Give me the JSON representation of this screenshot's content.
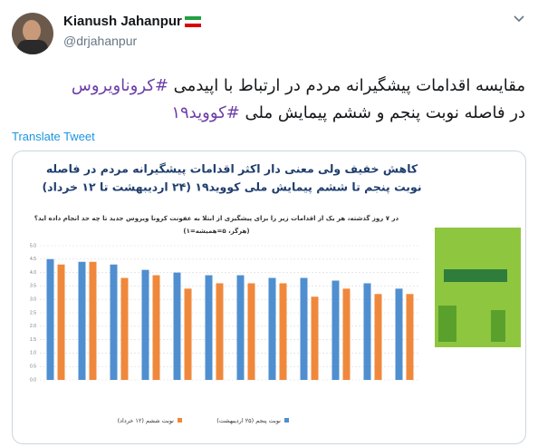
{
  "tweet": {
    "name": "Kianush Jahanpur",
    "handle": "@drjahanpur",
    "lines": [
      {
        "text": "مقایسه اقدامات پیشگیرانه مردم در ارتباط با اپیدمی",
        "hashtag": "#کروناویروس"
      },
      {
        "text": "در فاصله نوبت پنجم و ششم پیمایش ملی",
        "hashtag": "#کووید۱۹"
      }
    ],
    "translate": "Translate Tweet"
  },
  "chart_data": {
    "type": "bar",
    "title": [
      "کاهش خفیف ولی معنی دار اکثر اقدامات پیشگیرانه مردم در فاصله",
      "نوبت پنجم تا ششم پیمایش ملی کووید۱۹ (۲۴ اردیبهشت تا ۱۲ خرداد)"
    ],
    "subtitle": [
      "در ۷ روز گذشته، هر یک از اقدامات زیر را برای پیشگیری از ابتلا به عفونت کرونا ویروس جدید تا چه حد انجام داده اید؟",
      "(۱=هرگز، ۵=همیشه)"
    ],
    "categories": [
      null,
      null,
      null,
      null,
      null,
      null,
      null,
      null,
      null,
      null,
      null,
      null
    ],
    "series": [
      {
        "name": "نوبت پنجم (۲۵ اردیبهشت)",
        "color": "#4f8fd0",
        "values": [
          4.5,
          4.4,
          4.3,
          4.1,
          4.0,
          3.9,
          3.9,
          3.8,
          3.8,
          3.7,
          3.6,
          3.4
        ]
      },
      {
        "name": "نوبت ششم (۱۲ خرداد)",
        "color": "#f0883c",
        "values": [
          4.3,
          4.4,
          3.8,
          3.9,
          3.4,
          3.6,
          3.6,
          3.6,
          3.1,
          3.4,
          3.2,
          3.2
        ]
      }
    ],
    "ylim": [
      0,
      5
    ],
    "yticks": [
      {
        "value": 0,
        "label": "0.0"
      },
      0.5,
      {
        "value": 1,
        "label": "1.0"
      },
      1.5,
      {
        "value": 2,
        "label": "2.0"
      },
      2.5,
      {
        "value": 3,
        "label": "3.0"
      },
      3.5,
      {
        "value": 4,
        "label": "4.0"
      },
      4.5,
      {
        "value": 5,
        "label": "5.0"
      }
    ],
    "grid": true
  }
}
